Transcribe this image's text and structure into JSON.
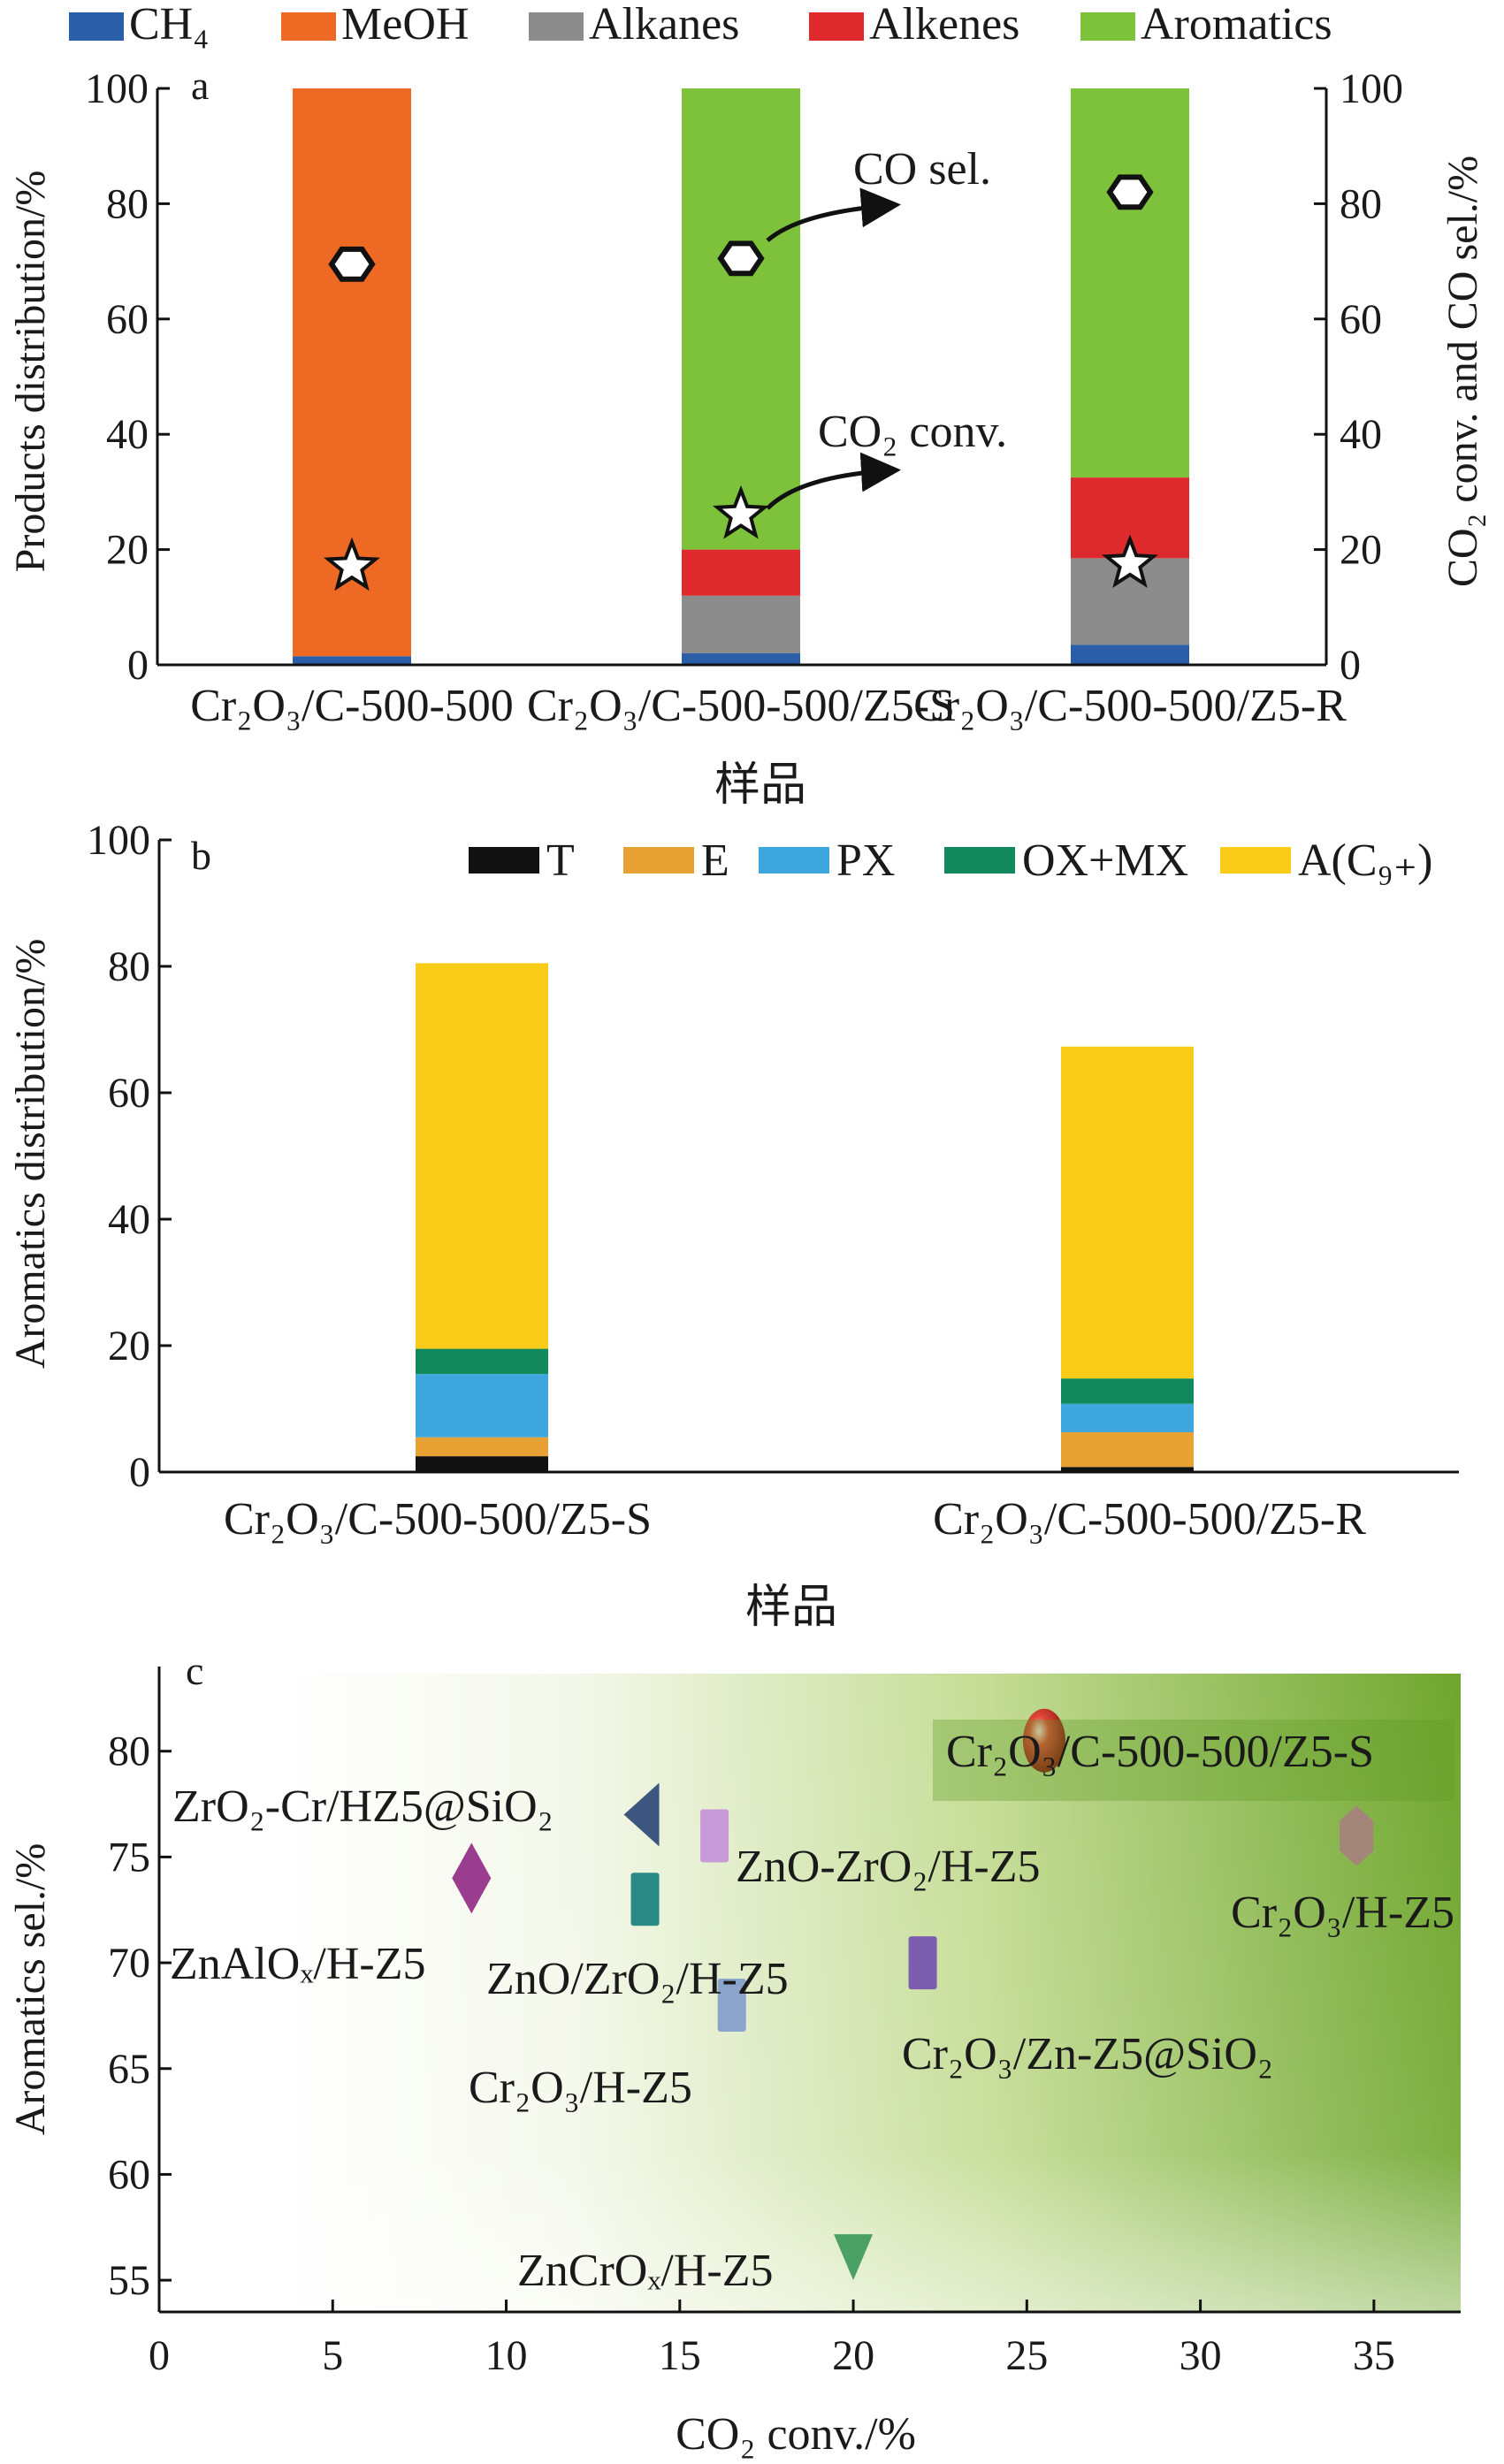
{
  "chart_data": [
    {
      "panel": "a",
      "type": "bar",
      "stacked": true,
      "xlabel": "样品",
      "ylabel": "Products distribution/%",
      "y2label": "CO₂ conv. and CO sel./%",
      "ylim": [
        0,
        100
      ],
      "yticks": [
        "0",
        "20",
        "40",
        "60",
        "80",
        "100"
      ],
      "categories": [
        "Cr₂O₃/C-500-500",
        "Cr₂O₃/C-500-500/Z5-S",
        "Cr₂O₃/C-500-500/Z5-R"
      ],
      "legend_position": "top",
      "series": [
        {
          "name": "CH₄",
          "color": "#2a5ea8",
          "values": [
            1.5,
            2,
            3.5
          ]
        },
        {
          "name": "MeOH",
          "color": "#ee6a24",
          "values": [
            98.5,
            0,
            0
          ]
        },
        {
          "name": "Alkanes",
          "color": "#8c8c8c",
          "values": [
            0,
            10,
            15
          ]
        },
        {
          "name": "Alkenes",
          "color": "#de2a2c",
          "values": [
            0,
            8,
            14
          ]
        },
        {
          "name": "Aromatics",
          "color": "#7ec13a",
          "values": [
            0,
            80,
            67.5
          ]
        }
      ],
      "markers": [
        {
          "name": "CO sel.",
          "shape": "hexagon",
          "values": [
            69.5,
            70.5,
            82
          ]
        },
        {
          "name": "CO₂ conv.",
          "shape": "star",
          "values": [
            17,
            26,
            17.5
          ]
        }
      ],
      "annotations": [
        "a",
        "CO sel.",
        "CO₂ conv."
      ]
    },
    {
      "panel": "b",
      "type": "bar",
      "stacked": true,
      "xlabel": "样品",
      "ylabel": "Aromatics distribution/%",
      "ylim": [
        0,
        100
      ],
      "yticks": [
        "0",
        "20",
        "40",
        "60",
        "80",
        "100"
      ],
      "categories": [
        "Cr₂O₃/C-500-500/Z5-S",
        "Cr₂O₃/C-500-500/Z5-R"
      ],
      "legend_position": "top",
      "series": [
        {
          "name": "T",
          "color": "#111111",
          "values": [
            2.5,
            0.8
          ]
        },
        {
          "name": "E",
          "color": "#e8a234",
          "values": [
            3,
            5.5
          ]
        },
        {
          "name": "PX",
          "color": "#3ea7dd",
          "values": [
            10,
            4.5
          ]
        },
        {
          "name": "OX+MX",
          "color": "#12895c",
          "values": [
            4,
            4
          ]
        },
        {
          "name": "A(C₉₊)",
          "color": "#f9cc1a",
          "values": [
            61,
            52.5
          ]
        }
      ],
      "annotations": [
        "b"
      ]
    },
    {
      "panel": "c",
      "type": "scatter",
      "xlabel": "CO₂ conv./%",
      "ylabel": "Aromatics sel./%",
      "xlim": [
        0,
        37.5
      ],
      "ylim": [
        53.5,
        84
      ],
      "xticks": [
        "0",
        "5",
        "10",
        "15",
        "20",
        "25",
        "30",
        "35"
      ],
      "yticks": [
        "55",
        "60",
        "65",
        "70",
        "75",
        "80"
      ],
      "background": "green-gradient",
      "points": [
        {
          "label": "Cr₂O₃/C-500-500/Z5-S",
          "x": 25.5,
          "y": 80.5,
          "shape": "sphere",
          "color": "#d42a20"
        },
        {
          "label": "ZrO₂-Cr/HZ5@SiO₂",
          "x": 14,
          "y": 77,
          "shape": "triangle-left",
          "color": "#3d5680"
        },
        {
          "label": "ZnO-ZrO₂/H-Z5",
          "x": 16,
          "y": 76,
          "shape": "rect",
          "color": "#c79bd8"
        },
        {
          "label": "Cr₂O₃/H-Z5",
          "x": 34.5,
          "y": 76,
          "shape": "hexagon",
          "color": "#a4857a"
        },
        {
          "label": "ZnAlOₓ/H-Z5",
          "x": 9,
          "y": 74,
          "shape": "diamond",
          "color": "#9b3d8f"
        },
        {
          "label": "ZnO/ZrO₂/H-Z5",
          "x": 14,
          "y": 73,
          "shape": "rect",
          "color": "#2a8a86"
        },
        {
          "label": "Cr₂O₃/Zn-Z5@SiO₂",
          "x": 22,
          "y": 70,
          "shape": "rect",
          "color": "#7b5eaf"
        },
        {
          "label": "Cr₂O₃/H-Z5",
          "x": 16.5,
          "y": 68,
          "shape": "rect",
          "color": "#8ba4cc"
        },
        {
          "label": "ZnCrOₓ/H-Z5",
          "x": 20,
          "y": 56,
          "shape": "triangle-down",
          "color": "#4aa065"
        }
      ],
      "annotations": [
        "c"
      ]
    }
  ]
}
